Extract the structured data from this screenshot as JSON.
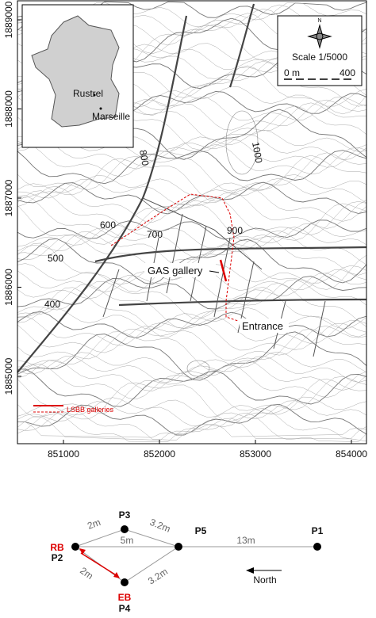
{
  "map": {
    "xticks": [
      851000,
      852000,
      853000,
      854000
    ],
    "yticks": [
      1885000,
      1886000,
      1887000,
      1888000,
      1889000
    ],
    "inset": {
      "labels": [
        "Rustrel",
        "Marseille"
      ]
    },
    "scale": {
      "north": "N",
      "title": "Scale 1/5000",
      "start": "0 m",
      "end": "400"
    },
    "contour_labels": [
      800,
      1000,
      600,
      700,
      900,
      500,
      400
    ],
    "annotations": [
      "GAS gallery",
      "Entrance"
    ],
    "legend": "LSBB galleries"
  },
  "diagram": {
    "nodes": [
      {
        "label": "P3"
      },
      {
        "label": "P5"
      },
      {
        "label": "P1"
      },
      {
        "label": "P2",
        "sublabel": "RB"
      },
      {
        "label": "P4",
        "sublabel": "EB"
      }
    ],
    "edges": [
      "2m",
      "3.2m",
      "5m",
      "13m",
      "2m",
      "3.2m"
    ],
    "direction": "North"
  }
}
